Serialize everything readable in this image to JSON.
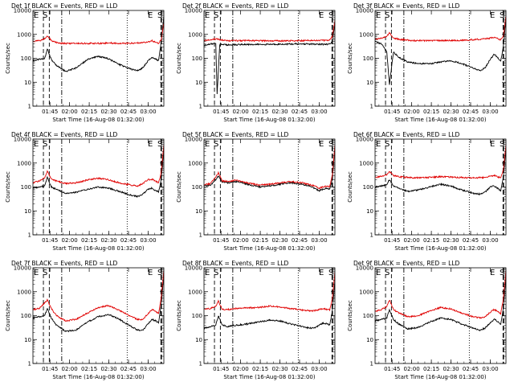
{
  "figure": {
    "xlabel": "Start Time (16-Aug-08 01:32:00)",
    "ylabel": "Counts/sec",
    "x_ticks": [
      "01:45",
      "02:00",
      "02:15",
      "02:30",
      "02:45",
      "03:00"
    ],
    "y_ticks": [
      "1",
      "10",
      "100",
      "1000",
      "10000"
    ],
    "corner_marks": [
      "E",
      "S",
      "E",
      "S"
    ]
  },
  "colors": {
    "events": "#000000",
    "lld": "#e00000"
  },
  "chart_data": [
    {
      "type": "line",
      "title": "Det 1f BLACK = Events, RED = LLD",
      "ylim": [
        1,
        10000
      ],
      "x_range_minutes": [
        0,
        100
      ],
      "x_ticks_minutes": [
        13,
        28,
        43,
        58,
        73,
        88
      ],
      "event_markers_minutes": [
        8,
        12.5,
        22,
        72,
        98
      ],
      "series": [
        {
          "name": "Events",
          "x": [
            0,
            5,
            9,
            11,
            14,
            18,
            25,
            33,
            42,
            50,
            58,
            66,
            75,
            80,
            84,
            88,
            91,
            94,
            96,
            98,
            100
          ],
          "y": [
            80,
            90,
            100,
            250,
            90,
            50,
            28,
            40,
            90,
            120,
            95,
            55,
            35,
            30,
            40,
            80,
            110,
            90,
            80,
            500,
            6000
          ]
        },
        {
          "name": "LLD",
          "x": [
            0,
            5,
            9,
            11,
            14,
            20,
            30,
            40,
            50,
            58,
            66,
            75,
            84,
            88,
            91,
            94,
            96,
            98,
            100
          ],
          "y": [
            500,
            550,
            650,
            900,
            550,
            420,
            420,
            420,
            420,
            440,
            420,
            420,
            450,
            480,
            550,
            450,
            420,
            600,
            3000
          ]
        }
      ]
    },
    {
      "type": "line",
      "title": "Det 2f BLACK = Events, RED = LLD",
      "ylim": [
        1,
        10000
      ],
      "x_range_minutes": [
        0,
        100
      ],
      "x_ticks_minutes": [
        13,
        28,
        43,
        58,
        73,
        88
      ],
      "event_markers_minutes": [
        8,
        12.5,
        22,
        72,
        98
      ],
      "series": [
        {
          "name": "Events",
          "x": [
            0,
            5,
            9,
            10,
            12,
            18,
            30,
            45,
            60,
            75,
            85,
            92,
            96,
            98,
            100
          ],
          "y": [
            350,
            400,
            430,
            3,
            380,
            360,
            380,
            380,
            390,
            400,
            390,
            380,
            400,
            500,
            3000
          ]
        },
        {
          "name": "LLD",
          "x": [
            0,
            5,
            9,
            12,
            18,
            30,
            45,
            60,
            75,
            85,
            92,
            96,
            98,
            100
          ],
          "y": [
            550,
            600,
            650,
            600,
            550,
            550,
            540,
            540,
            550,
            560,
            560,
            580,
            800,
            4000
          ]
        }
      ]
    },
    {
      "type": "line",
      "title": "Det 3f BLACK = Events, RED = LLD",
      "ylim": [
        1,
        10000
      ],
      "x_range_minutes": [
        0,
        100
      ],
      "x_ticks_minutes": [
        13,
        28,
        43,
        58,
        73,
        88
      ],
      "event_markers_minutes": [
        8,
        12.5,
        22,
        72,
        98
      ],
      "series": [
        {
          "name": "Events",
          "x": [
            0,
            5,
            9,
            11,
            14,
            18,
            25,
            33,
            42,
            50,
            58,
            66,
            75,
            80,
            84,
            88,
            91,
            94,
            96,
            98,
            100
          ],
          "y": [
            500,
            400,
            180,
            8,
            180,
            110,
            70,
            60,
            60,
            70,
            80,
            60,
            40,
            30,
            40,
            90,
            150,
            100,
            80,
            300,
            5000
          ]
        },
        {
          "name": "LLD",
          "x": [
            0,
            5,
            9,
            11,
            14,
            20,
            30,
            40,
            50,
            58,
            66,
            75,
            84,
            88,
            91,
            94,
            96,
            98,
            100
          ],
          "y": [
            600,
            700,
            800,
            1200,
            700,
            600,
            550,
            550,
            550,
            560,
            560,
            600,
            650,
            700,
            750,
            650,
            600,
            800,
            6000
          ]
        }
      ]
    },
    {
      "type": "line",
      "title": "Det 4f BLACK = Events, RED = LLD",
      "ylim": [
        1,
        10000
      ],
      "x_range_minutes": [
        0,
        100
      ],
      "x_ticks_minutes": [
        13,
        28,
        43,
        58,
        73,
        88
      ],
      "event_markers_minutes": [
        8,
        12.5,
        22,
        72,
        98
      ],
      "series": [
        {
          "name": "Events",
          "x": [
            0,
            5,
            9,
            11,
            14,
            18,
            25,
            33,
            42,
            50,
            58,
            66,
            75,
            80,
            84,
            88,
            91,
            94,
            96,
            98,
            100
          ],
          "y": [
            90,
            100,
            110,
            250,
            100,
            80,
            55,
            60,
            80,
            100,
            90,
            65,
            45,
            40,
            50,
            80,
            90,
            70,
            60,
            200,
            4000
          ]
        },
        {
          "name": "LLD",
          "x": [
            0,
            5,
            9,
            11,
            14,
            18,
            25,
            33,
            42,
            50,
            58,
            66,
            75,
            80,
            84,
            88,
            91,
            94,
            96,
            98,
            100
          ],
          "y": [
            150,
            180,
            250,
            450,
            220,
            180,
            140,
            150,
            200,
            230,
            200,
            150,
            120,
            110,
            140,
            200,
            210,
            170,
            150,
            400,
            6000
          ]
        }
      ]
    },
    {
      "type": "line",
      "title": "Det 5f BLACK = Events, RED = LLD",
      "ylim": [
        1,
        10000
      ],
      "x_range_minutes": [
        0,
        100
      ],
      "x_ticks_minutes": [
        13,
        28,
        43,
        58,
        73,
        88
      ],
      "event_markers_minutes": [
        8,
        12.5,
        22,
        72,
        98
      ],
      "series": [
        {
          "name": "Events",
          "x": [
            0,
            5,
            9,
            11,
            14,
            18,
            25,
            33,
            42,
            50,
            58,
            66,
            75,
            80,
            84,
            88,
            91,
            94,
            96,
            98,
            100
          ],
          "y": [
            110,
            120,
            200,
            300,
            160,
            150,
            170,
            130,
            100,
            110,
            130,
            150,
            130,
            110,
            90,
            70,
            80,
            90,
            80,
            200,
            4000
          ]
        },
        {
          "name": "LLD",
          "x": [
            0,
            5,
            9,
            11,
            14,
            18,
            25,
            33,
            42,
            50,
            58,
            66,
            75,
            80,
            84,
            88,
            91,
            94,
            96,
            98,
            100
          ],
          "y": [
            120,
            140,
            250,
            400,
            180,
            170,
            190,
            150,
            120,
            130,
            150,
            170,
            150,
            130,
            110,
            90,
            100,
            110,
            100,
            300,
            6000
          ]
        }
      ]
    },
    {
      "type": "line",
      "title": "Det 6f BLACK = Events, RED = LLD",
      "ylim": [
        1,
        10000
      ],
      "x_range_minutes": [
        0,
        100
      ],
      "x_ticks_minutes": [
        13,
        28,
        43,
        58,
        73,
        88
      ],
      "event_markers_minutes": [
        8,
        12.5,
        22,
        72,
        98
      ],
      "series": [
        {
          "name": "Events",
          "x": [
            0,
            5,
            9,
            11,
            14,
            18,
            25,
            33,
            42,
            50,
            58,
            66,
            75,
            80,
            84,
            88,
            91,
            94,
            96,
            98,
            100
          ],
          "y": [
            100,
            110,
            130,
            200,
            110,
            90,
            65,
            75,
            100,
            130,
            110,
            75,
            55,
            50,
            60,
            100,
            110,
            85,
            70,
            250,
            4000
          ]
        },
        {
          "name": "LLD",
          "x": [
            0,
            5,
            9,
            11,
            14,
            18,
            25,
            33,
            42,
            50,
            58,
            66,
            75,
            84,
            88,
            91,
            94,
            96,
            98,
            100
          ],
          "y": [
            250,
            280,
            320,
            450,
            300,
            270,
            250,
            240,
            250,
            270,
            260,
            250,
            240,
            250,
            280,
            300,
            260,
            250,
            500,
            6000
          ]
        }
      ]
    },
    {
      "type": "line",
      "title": "Det 7f BLACK = Events, RED = LLD",
      "ylim": [
        1,
        10000
      ],
      "x_range_minutes": [
        0,
        100
      ],
      "x_ticks_minutes": [
        13,
        28,
        43,
        58,
        73,
        88
      ],
      "event_markers_minutes": [
        8,
        12.5,
        22,
        72,
        98
      ],
      "series": [
        {
          "name": "Events",
          "x": [
            0,
            5,
            9,
            11,
            14,
            18,
            25,
            33,
            42,
            50,
            58,
            66,
            75,
            80,
            84,
            88,
            91,
            94,
            96,
            98,
            100
          ],
          "y": [
            80,
            90,
            100,
            200,
            80,
            40,
            22,
            25,
            55,
            90,
            110,
            70,
            35,
            25,
            25,
            45,
            70,
            60,
            50,
            300,
            5000
          ]
        },
        {
          "name": "LLD",
          "x": [
            0,
            5,
            9,
            11,
            14,
            18,
            25,
            33,
            42,
            50,
            58,
            66,
            75,
            80,
            84,
            88,
            91,
            94,
            96,
            98,
            100
          ],
          "y": [
            180,
            200,
            350,
            450,
            200,
            100,
            60,
            70,
            130,
            220,
            260,
            170,
            90,
            70,
            70,
            120,
            180,
            150,
            120,
            600,
            8000
          ]
        }
      ]
    },
    {
      "type": "line",
      "title": "Det 8f BLACK = Events, RED = LLD",
      "ylim": [
        1,
        10000
      ],
      "x_range_minutes": [
        0,
        100
      ],
      "x_ticks_minutes": [
        13,
        28,
        43,
        58,
        73,
        88
      ],
      "event_markers_minutes": [
        8,
        12.5,
        22,
        72,
        98
      ],
      "series": [
        {
          "name": "Events",
          "x": [
            0,
            5,
            9,
            11,
            14,
            18,
            25,
            33,
            42,
            50,
            58,
            66,
            75,
            80,
            84,
            88,
            91,
            94,
            96,
            98,
            100
          ],
          "y": [
            30,
            35,
            40,
            100,
            40,
            35,
            40,
            45,
            55,
            65,
            60,
            45,
            35,
            30,
            30,
            40,
            50,
            45,
            40,
            150,
            3000
          ]
        },
        {
          "name": "LLD",
          "x": [
            0,
            5,
            9,
            11,
            14,
            18,
            25,
            33,
            42,
            50,
            58,
            66,
            75,
            80,
            84,
            88,
            91,
            94,
            96,
            98,
            100
          ],
          "y": [
            180,
            200,
            250,
            400,
            180,
            180,
            200,
            210,
            220,
            250,
            230,
            200,
            170,
            160,
            160,
            180,
            200,
            180,
            170,
            500,
            7000
          ]
        }
      ]
    },
    {
      "type": "line",
      "title": "Det 9f BLACK = Events, RED = LLD",
      "ylim": [
        1,
        10000
      ],
      "x_range_minutes": [
        0,
        100
      ],
      "x_ticks_minutes": [
        13,
        28,
        43,
        58,
        73,
        88
      ],
      "event_markers_minutes": [
        8,
        12.5,
        22,
        72,
        98
      ],
      "series": [
        {
          "name": "Events",
          "x": [
            0,
            5,
            9,
            11,
            14,
            18,
            25,
            33,
            42,
            50,
            58,
            66,
            75,
            80,
            84,
            88,
            91,
            94,
            96,
            98,
            100
          ],
          "y": [
            60,
            70,
            80,
            180,
            70,
            45,
            28,
            32,
            55,
            80,
            70,
            45,
            30,
            25,
            30,
            50,
            70,
            55,
            45,
            200,
            4000
          ]
        },
        {
          "name": "LLD",
          "x": [
            0,
            5,
            9,
            11,
            14,
            18,
            25,
            33,
            42,
            50,
            58,
            66,
            75,
            80,
            84,
            88,
            91,
            94,
            96,
            98,
            100
          ],
          "y": [
            150,
            180,
            250,
            450,
            180,
            130,
            90,
            100,
            160,
            220,
            190,
            130,
            90,
            80,
            90,
            140,
            180,
            150,
            120,
            500,
            8000
          ]
        }
      ]
    }
  ]
}
